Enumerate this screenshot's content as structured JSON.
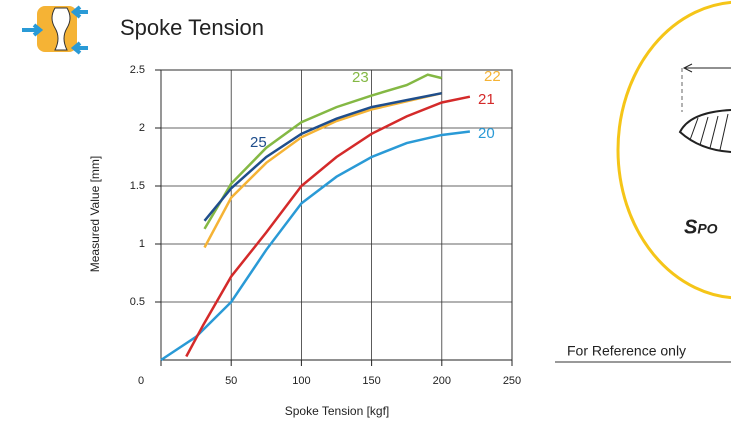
{
  "header": {
    "title": "Spoke Tension"
  },
  "note": "For Reference only",
  "badge": "Spo",
  "chart_data": {
    "type": "line",
    "xlabel": "Spoke Tension [kgf]",
    "ylabel": "Measured Value [mm]",
    "xlim": [
      0,
      250
    ],
    "ylim": [
      0,
      2.5
    ],
    "xticks": [
      0,
      50,
      100,
      150,
      200,
      250
    ],
    "yticks": [
      0.5,
      1,
      1.5,
      2,
      2.5
    ],
    "grid": true,
    "series": [
      {
        "name": "20",
        "color": "#2a9ad6",
        "x": [
          0,
          25,
          50,
          75,
          100,
          125,
          150,
          175,
          200,
          220
        ],
        "values": [
          0,
          0.2,
          0.5,
          0.95,
          1.35,
          1.58,
          1.75,
          1.87,
          1.94,
          1.97
        ]
      },
      {
        "name": "21",
        "color": "#d42a2a",
        "x": [
          18,
          30,
          50,
          75,
          100,
          125,
          150,
          175,
          200,
          220
        ],
        "values": [
          0.03,
          0.3,
          0.72,
          1.1,
          1.5,
          1.75,
          1.95,
          2.1,
          2.22,
          2.27
        ]
      },
      {
        "name": "22",
        "color": "#f5b335",
        "x": [
          31,
          50,
          75,
          100,
          125,
          150,
          175,
          200
        ],
        "values": [
          0.97,
          1.4,
          1.7,
          1.92,
          2.06,
          2.16,
          2.23,
          2.3
        ]
      },
      {
        "name": "23",
        "color": "#84b844",
        "x": [
          31,
          50,
          75,
          100,
          125,
          150,
          175,
          190,
          200
        ],
        "values": [
          1.13,
          1.52,
          1.83,
          2.05,
          2.18,
          2.28,
          2.37,
          2.46,
          2.43
        ]
      },
      {
        "name": "25",
        "color": "#1f4e8c",
        "x": [
          31,
          50,
          75,
          100,
          125,
          150,
          175,
          200
        ],
        "values": [
          1.2,
          1.48,
          1.75,
          1.95,
          2.08,
          2.18,
          2.24,
          2.3
        ]
      }
    ]
  }
}
